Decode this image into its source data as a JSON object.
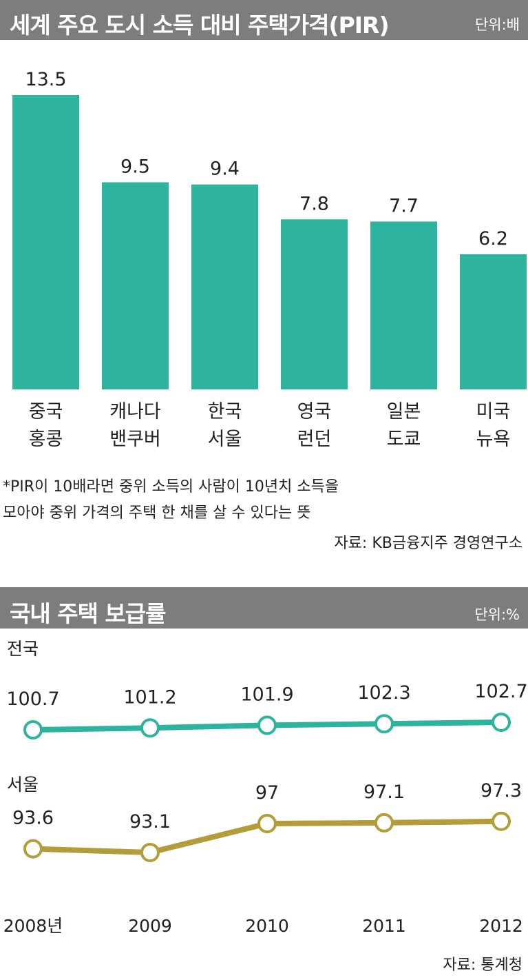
{
  "chart_data": [
    {
      "type": "bar",
      "title": "세계 주요 도시 소득 대비 주택가격(PIR)",
      "unit": "단위:배",
      "categories": [
        [
          "중국",
          "홍콩"
        ],
        [
          "캐나다",
          "밴쿠버"
        ],
        [
          "한국",
          "서울"
        ],
        [
          "영국",
          "런던"
        ],
        [
          "일본",
          "도쿄"
        ],
        [
          "미국",
          "뉴욕"
        ]
      ],
      "values": [
        13.5,
        9.5,
        9.4,
        7.8,
        7.7,
        6.2
      ],
      "value_labels": [
        "13.5",
        "9.5",
        "9.4",
        "7.8",
        "7.7",
        "6.2"
      ],
      "ylim": [
        0,
        13.5
      ],
      "grid": false,
      "colors": {
        "bar": "#2db39e"
      }
    },
    {
      "type": "line",
      "title": "국내 주택 보급률",
      "unit": "단위:%",
      "x": [
        "2008년",
        "2009",
        "2010",
        "2011",
        "2012"
      ],
      "series": [
        {
          "name": "전국",
          "values": [
            100.7,
            101.2,
            101.9,
            102.3,
            102.7
          ],
          "labels": [
            "100.7",
            "101.2",
            "101.9",
            "102.3",
            "102.7"
          ],
          "color": "#2db39e"
        },
        {
          "name": "서울",
          "values": [
            93.6,
            93.1,
            97,
            97.1,
            97.3
          ],
          "labels": [
            "93.6",
            "93.1",
            "97",
            "97.1",
            "97.3"
          ],
          "color": "#b39c3a"
        }
      ],
      "grid": false
    }
  ],
  "notes": {
    "pir_line1": "*PIR이 10배라면 중위 소득의 사람이 10년치 소득을",
    "pir_line2": "모아야 중위 가격의 주택 한 채를 살 수 있다는 뜻",
    "source1": "자료: KB금융지주 경영연구소",
    "source2": "자료: 통계청"
  }
}
